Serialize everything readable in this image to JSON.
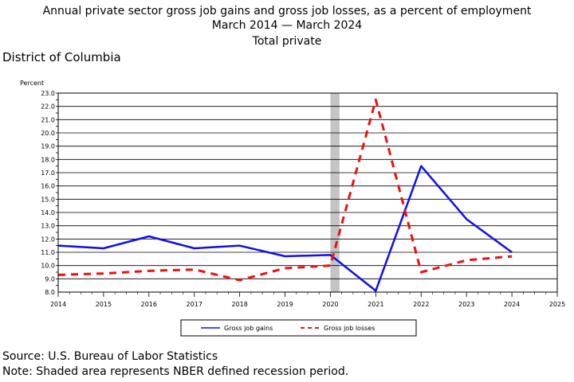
{
  "title": {
    "line1": "Annual private sector gross job gains and gross job losses, as a percent of employment",
    "line2": "March 2014 — March 2024",
    "line3": "Total private"
  },
  "region_label": "District of Columbia",
  "chart_data": {
    "type": "line",
    "title": "Annual private sector gross job gains and gross job losses, as a percent of employment",
    "ylabel": "Percent",
    "xlabel": "",
    "xlim": [
      2014,
      2025
    ],
    "ylim": [
      8.0,
      23.0
    ],
    "x_ticks": [
      "2014",
      "2015",
      "2016",
      "2017",
      "2018",
      "2019",
      "2020",
      "2021",
      "2022",
      "2023",
      "2024",
      "2025"
    ],
    "y_ticks": [
      "8.0",
      "9.0",
      "10.0",
      "11.0",
      "12.0",
      "13.0",
      "14.0",
      "15.0",
      "16.0",
      "17.0",
      "18.0",
      "19.0",
      "20.0",
      "21.0",
      "22.0",
      "23.0"
    ],
    "grid": true,
    "legend_position": "bottom-center",
    "recession_band": [
      2020,
      2020.2
    ],
    "series": [
      {
        "name": "Gross job gains",
        "color": "#1010ee",
        "style": "solid",
        "x": [
          2014,
          2015,
          2016,
          2017,
          2018,
          2019,
          2020,
          2021,
          2022,
          2023,
          2024
        ],
        "values": [
          11.5,
          11.3,
          12.2,
          11.3,
          11.5,
          10.7,
          10.8,
          8.1,
          17.5,
          13.5,
          11.0
        ]
      },
      {
        "name": "Gross job losses",
        "color": "#ee1010",
        "style": "dashed",
        "x": [
          2014,
          2015,
          2016,
          2017,
          2018,
          2019,
          2020,
          2021,
          2022,
          2023,
          2024
        ],
        "values": [
          9.3,
          9.4,
          9.6,
          9.7,
          8.9,
          9.8,
          10.0,
          22.5,
          9.5,
          10.4,
          10.7
        ]
      }
    ]
  },
  "footer": {
    "source": "Source: U.S. Bureau of Labor Statistics",
    "note": "Note: Shaded area represents NBER defined recession period."
  }
}
